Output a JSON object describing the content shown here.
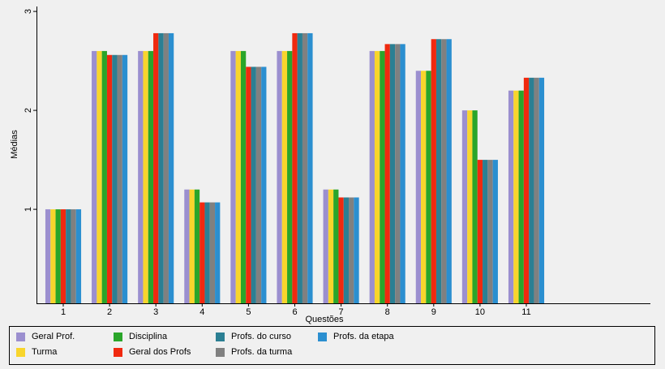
{
  "chart_data": {
    "type": "bar",
    "title": "",
    "xlabel": "Questões",
    "ylabel": "Médias",
    "categories": [
      "1",
      "2",
      "3",
      "4",
      "5",
      "6",
      "7",
      "8",
      "9",
      "10",
      "11"
    ],
    "yticks": [
      "1",
      "2",
      "3"
    ],
    "ylim": [
      0.05,
      3.05
    ],
    "grid": false,
    "legend_position": "bottom",
    "series": [
      {
        "name": "Geral Prof.",
        "color": "#9b8fcf",
        "values": [
          1.0,
          2.6,
          2.6,
          1.2,
          2.6,
          2.6,
          1.2,
          2.6,
          2.4,
          2.0,
          2.2
        ]
      },
      {
        "name": "Turma",
        "color": "#f8d52c",
        "values": [
          1.0,
          2.6,
          2.6,
          1.2,
          2.6,
          2.6,
          1.2,
          2.6,
          2.4,
          2.0,
          2.2
        ]
      },
      {
        "name": "Disciplina",
        "color": "#2aa52a",
        "values": [
          1.0,
          2.6,
          2.6,
          1.2,
          2.6,
          2.6,
          1.2,
          2.6,
          2.4,
          2.0,
          2.2
        ]
      },
      {
        "name": "Geral dos Profs",
        "color": "#f0290f",
        "values": [
          1.0,
          2.56,
          2.78,
          1.07,
          2.44,
          2.78,
          1.12,
          2.67,
          2.72,
          1.5,
          2.33
        ]
      },
      {
        "name": "Profs. do curso",
        "color": "#2b7f93",
        "values": [
          1.0,
          2.56,
          2.78,
          1.07,
          2.44,
          2.78,
          1.12,
          2.67,
          2.72,
          1.5,
          2.33
        ]
      },
      {
        "name": "Profs. da turma",
        "color": "#808080",
        "values": [
          1.0,
          2.56,
          2.78,
          1.07,
          2.44,
          2.78,
          1.12,
          2.67,
          2.72,
          1.5,
          2.33
        ]
      },
      {
        "name": "Profs. da etapa",
        "color": "#2b8fd0",
        "values": [
          1.0,
          2.56,
          2.78,
          1.07,
          2.44,
          2.78,
          1.12,
          2.67,
          2.72,
          1.5,
          2.33
        ]
      }
    ]
  }
}
